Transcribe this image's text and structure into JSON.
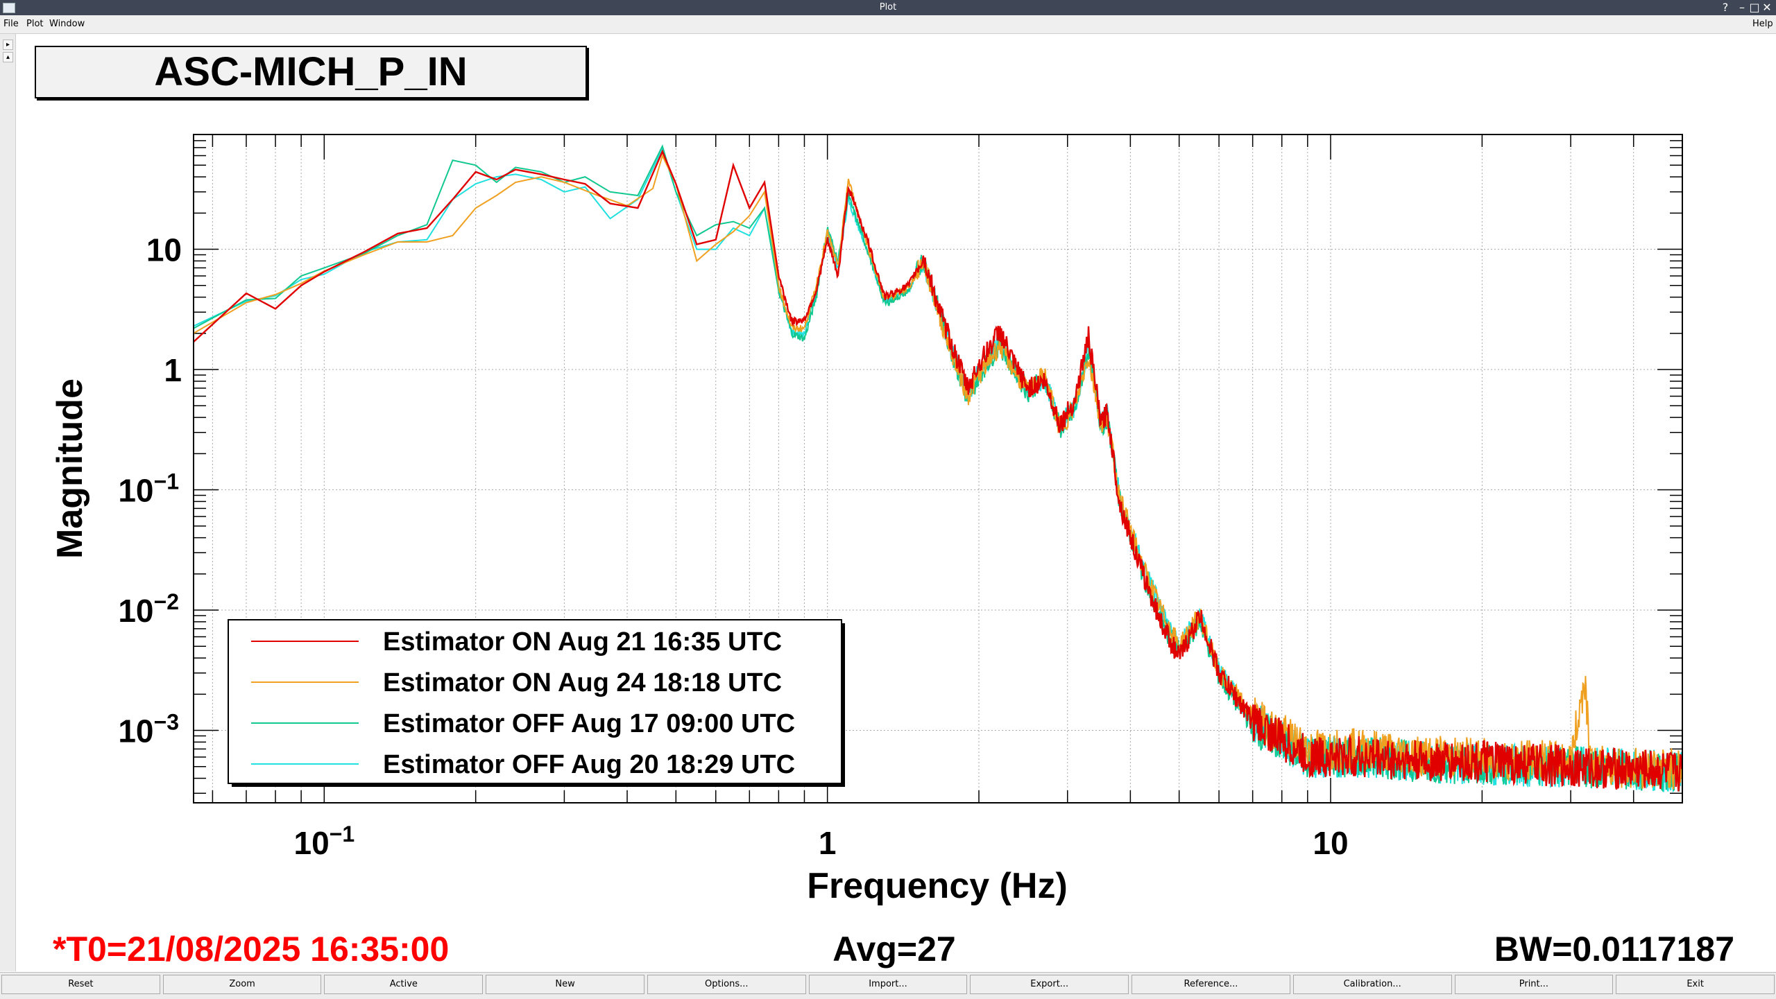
{
  "window": {
    "title": "Plot"
  },
  "menu": {
    "file": "File",
    "plot": "Plot",
    "window": "Window",
    "help": "Help"
  },
  "plot": {
    "title": "ASC-MICH_P_IN",
    "t0": "*T0=21/08/2025 16:35:00",
    "avg": "Avg=27",
    "bw": "BW=0.0117187"
  },
  "buttons": [
    "Reset",
    "Zoom",
    "Active",
    "New",
    "Options...",
    "Import...",
    "Export...",
    "Reference...",
    "Calibration...",
    "Print...",
    "Exit"
  ],
  "colors": {
    "red": "#e00000",
    "orange": "#f0a020",
    "green": "#10c890",
    "cyan": "#20e0e0",
    "grid": "#9a9a9a"
  },
  "chart_data": {
    "type": "line",
    "title": "ASC-MICH_P_IN",
    "xlabel": "Frequency (Hz)",
    "ylabel": "Magnitude",
    "xscale": "log",
    "yscale": "log",
    "xlim": [
      0.055,
      50
    ],
    "ylim": [
      0.00025,
      90
    ],
    "x_ticks": [
      {
        "value": 0.1,
        "label": "10",
        "exp": "−1"
      },
      {
        "value": 1,
        "label": "1",
        "exp": ""
      },
      {
        "value": 10,
        "label": "10",
        "exp": ""
      }
    ],
    "y_ticks": [
      {
        "value": 10,
        "label": "10",
        "exp": ""
      },
      {
        "value": 1,
        "label": "1",
        "exp": ""
      },
      {
        "value": 0.1,
        "label": "10",
        "exp": "−1"
      },
      {
        "value": 0.01,
        "label": "10",
        "exp": "−2"
      },
      {
        "value": 0.001,
        "label": "10",
        "exp": "−3"
      }
    ],
    "grid": true,
    "legend_position": "bottom-left",
    "series": [
      {
        "name": "Estimator ON Aug 21 16:35 UTC",
        "color": "#e00000",
        "points": [
          [
            0.055,
            1.7
          ],
          [
            0.07,
            4.3
          ],
          [
            0.08,
            3.2
          ],
          [
            0.09,
            5
          ],
          [
            0.1,
            6.5
          ],
          [
            0.12,
            9.5
          ],
          [
            0.14,
            13.5
          ],
          [
            0.16,
            15
          ],
          [
            0.18,
            26
          ],
          [
            0.2,
            44
          ],
          [
            0.22,
            38
          ],
          [
            0.24,
            46
          ],
          [
            0.27,
            42
          ],
          [
            0.3,
            38
          ],
          [
            0.33,
            35
          ],
          [
            0.37,
            24
          ],
          [
            0.42,
            22
          ],
          [
            0.47,
            65
          ],
          [
            0.5,
            35
          ],
          [
            0.55,
            11
          ],
          [
            0.6,
            12
          ],
          [
            0.65,
            50
          ],
          [
            0.7,
            22
          ],
          [
            0.75,
            36
          ],
          [
            0.8,
            6
          ],
          [
            0.85,
            2.5
          ],
          [
            0.9,
            2.6
          ],
          [
            0.95,
            4.5
          ],
          [
            1.0,
            12
          ],
          [
            1.05,
            6
          ],
          [
            1.1,
            33
          ],
          [
            1.2,
            12
          ],
          [
            1.3,
            4
          ],
          [
            1.45,
            5
          ],
          [
            1.55,
            8.5
          ],
          [
            1.7,
            2.5
          ],
          [
            1.9,
            0.7
          ],
          [
            2.0,
            1.1
          ],
          [
            2.2,
            2.1
          ],
          [
            2.35,
            1.1
          ],
          [
            2.5,
            0.7
          ],
          [
            2.7,
            0.8
          ],
          [
            2.9,
            0.35
          ],
          [
            3.1,
            0.55
          ],
          [
            3.3,
            1.9
          ],
          [
            3.5,
            0.35
          ],
          [
            3.6,
            0.45
          ],
          [
            3.8,
            0.08
          ],
          [
            4.2,
            0.022
          ],
          [
            4.6,
            0.008
          ],
          [
            5.0,
            0.004
          ],
          [
            5.5,
            0.009
          ],
          [
            6.0,
            0.003
          ],
          [
            7.0,
            0.0012
          ],
          [
            9.0,
            0.0006
          ],
          [
            12,
            0.0006
          ],
          [
            15,
            0.00055
          ],
          [
            20,
            0.00055
          ],
          [
            30,
            0.0005
          ],
          [
            50,
            0.00045
          ]
        ]
      },
      {
        "name": "Estimator ON Aug 24 18:18 UTC",
        "color": "#f0a020",
        "points": [
          [
            0.055,
            2.0
          ],
          [
            0.07,
            3.6
          ],
          [
            0.08,
            4.2
          ],
          [
            0.09,
            5.2
          ],
          [
            0.1,
            6.6
          ],
          [
            0.12,
            9.0
          ],
          [
            0.14,
            11.5
          ],
          [
            0.16,
            11.5
          ],
          [
            0.18,
            13
          ],
          [
            0.2,
            22
          ],
          [
            0.22,
            28
          ],
          [
            0.24,
            36
          ],
          [
            0.27,
            40
          ],
          [
            0.3,
            36
          ],
          [
            0.35,
            28
          ],
          [
            0.4,
            23
          ],
          [
            0.45,
            32
          ],
          [
            0.47,
            60
          ],
          [
            0.5,
            35
          ],
          [
            0.55,
            8
          ],
          [
            0.6,
            11
          ],
          [
            0.65,
            14
          ],
          [
            0.7,
            19
          ],
          [
            0.75,
            30
          ],
          [
            0.8,
            5
          ],
          [
            0.85,
            2.2
          ],
          [
            0.9,
            2.2
          ],
          [
            0.95,
            5
          ],
          [
            1.0,
            14
          ],
          [
            1.05,
            7
          ],
          [
            1.1,
            38
          ],
          [
            1.2,
            11
          ],
          [
            1.3,
            3.8
          ],
          [
            1.45,
            4.8
          ],
          [
            1.55,
            8
          ],
          [
            1.7,
            2.2
          ],
          [
            1.9,
            0.6
          ],
          [
            2.0,
            0.9
          ],
          [
            2.2,
            1.6
          ],
          [
            2.35,
            1.0
          ],
          [
            2.5,
            0.65
          ],
          [
            2.7,
            0.9
          ],
          [
            2.9,
            0.32
          ],
          [
            3.1,
            0.5
          ],
          [
            3.3,
            1.3
          ],
          [
            3.5,
            0.35
          ],
          [
            3.6,
            0.4
          ],
          [
            3.8,
            0.09
          ],
          [
            4.2,
            0.025
          ],
          [
            4.6,
            0.01
          ],
          [
            5.0,
            0.005
          ],
          [
            5.5,
            0.009
          ],
          [
            6.0,
            0.003
          ],
          [
            7.0,
            0.0013
          ],
          [
            9.0,
            0.0007
          ],
          [
            12,
            0.0007
          ],
          [
            15,
            0.00062
          ],
          [
            20,
            0.00058
          ],
          [
            30,
            0.00055
          ],
          [
            32,
            0.0027
          ],
          [
            33,
            0.0005
          ],
          [
            50,
            0.00048
          ]
        ]
      },
      {
        "name": "Estimator OFF Aug 17 09:00 UTC",
        "color": "#10c890",
        "points": [
          [
            0.055,
            2.2
          ],
          [
            0.07,
            3.8
          ],
          [
            0.08,
            3.9
          ],
          [
            0.09,
            6
          ],
          [
            0.1,
            7
          ],
          [
            0.12,
            9.2
          ],
          [
            0.14,
            13
          ],
          [
            0.16,
            16
          ],
          [
            0.18,
            55
          ],
          [
            0.2,
            50
          ],
          [
            0.22,
            36
          ],
          [
            0.24,
            48
          ],
          [
            0.27,
            44
          ],
          [
            0.3,
            36
          ],
          [
            0.33,
            40
          ],
          [
            0.37,
            30
          ],
          [
            0.42,
            28
          ],
          [
            0.47,
            72
          ],
          [
            0.5,
            30
          ],
          [
            0.55,
            13
          ],
          [
            0.6,
            16
          ],
          [
            0.65,
            17
          ],
          [
            0.7,
            15
          ],
          [
            0.75,
            22
          ],
          [
            0.8,
            4.5
          ],
          [
            0.85,
            2.0
          ],
          [
            0.9,
            1.8
          ],
          [
            0.95,
            4
          ],
          [
            1.0,
            15
          ],
          [
            1.05,
            8
          ],
          [
            1.1,
            28
          ],
          [
            1.2,
            10
          ],
          [
            1.3,
            3.5
          ],
          [
            1.45,
            4.5
          ],
          [
            1.55,
            8.5
          ],
          [
            1.7,
            2.3
          ],
          [
            1.9,
            0.55
          ],
          [
            2.0,
            0.9
          ],
          [
            2.2,
            1.6
          ],
          [
            2.35,
            1.0
          ],
          [
            2.5,
            0.65
          ],
          [
            2.7,
            0.85
          ],
          [
            2.9,
            0.32
          ],
          [
            3.1,
            0.45
          ],
          [
            3.3,
            1.5
          ],
          [
            3.5,
            0.33
          ],
          [
            3.6,
            0.4
          ],
          [
            3.8,
            0.085
          ],
          [
            4.2,
            0.022
          ],
          [
            4.6,
            0.008
          ],
          [
            5.0,
            0.0045
          ],
          [
            5.5,
            0.008
          ],
          [
            6.0,
            0.0028
          ],
          [
            7.0,
            0.0011
          ],
          [
            9.0,
            0.0006
          ],
          [
            12,
            0.0006
          ],
          [
            15,
            0.00055
          ],
          [
            20,
            0.00052
          ],
          [
            30,
            0.0005
          ],
          [
            50,
            0.00045
          ]
        ]
      },
      {
        "name": "Estimator OFF Aug 20 18:29 UTC",
        "color": "#20e0e0",
        "points": [
          [
            0.055,
            2.3
          ],
          [
            0.07,
            3.7
          ],
          [
            0.08,
            4.1
          ],
          [
            0.09,
            5.6
          ],
          [
            0.1,
            6.2
          ],
          [
            0.12,
            9.5
          ],
          [
            0.14,
            11.5
          ],
          [
            0.16,
            12
          ],
          [
            0.18,
            26
          ],
          [
            0.2,
            35
          ],
          [
            0.22,
            40
          ],
          [
            0.24,
            42
          ],
          [
            0.27,
            38
          ],
          [
            0.3,
            30
          ],
          [
            0.33,
            33
          ],
          [
            0.37,
            18
          ],
          [
            0.42,
            26
          ],
          [
            0.47,
            68
          ],
          [
            0.5,
            30
          ],
          [
            0.55,
            10
          ],
          [
            0.6,
            10
          ],
          [
            0.65,
            15
          ],
          [
            0.7,
            13
          ],
          [
            0.75,
            22
          ],
          [
            0.8,
            5
          ],
          [
            0.85,
            2.0
          ],
          [
            0.9,
            2.0
          ],
          [
            0.95,
            4.5
          ],
          [
            1.0,
            13
          ],
          [
            1.05,
            7
          ],
          [
            1.1,
            26
          ],
          [
            1.2,
            10
          ],
          [
            1.3,
            3.6
          ],
          [
            1.45,
            4.6
          ],
          [
            1.55,
            8
          ],
          [
            1.7,
            2.4
          ],
          [
            1.9,
            0.6
          ],
          [
            2.0,
            0.95
          ],
          [
            2.2,
            1.7
          ],
          [
            2.35,
            1.05
          ],
          [
            2.5,
            0.7
          ],
          [
            2.7,
            0.85
          ],
          [
            2.9,
            0.34
          ],
          [
            3.1,
            0.5
          ],
          [
            3.3,
            1.5
          ],
          [
            3.5,
            0.35
          ],
          [
            3.6,
            0.42
          ],
          [
            3.8,
            0.09
          ],
          [
            4.2,
            0.026
          ],
          [
            4.6,
            0.01
          ],
          [
            5.0,
            0.005
          ],
          [
            5.5,
            0.009
          ],
          [
            6.0,
            0.0032
          ],
          [
            7.0,
            0.0012
          ],
          [
            9.0,
            0.0006
          ],
          [
            12,
            0.0006
          ],
          [
            15,
            0.00055
          ],
          [
            20,
            0.00052
          ],
          [
            30,
            0.0005
          ],
          [
            50,
            0.00045
          ]
        ]
      }
    ]
  }
}
